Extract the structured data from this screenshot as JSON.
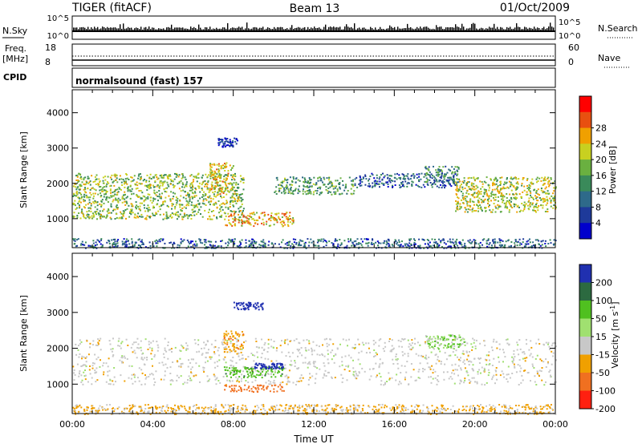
{
  "header": {
    "radar": "TIGER (fitACF)",
    "beam": "Beam 13",
    "date": "01/Oct/2009"
  },
  "panels": {
    "noise": {
      "left_label": "N.Sky",
      "left_ticks": [
        "10^5",
        "10^0"
      ],
      "right_label": "N.Search",
      "right_ticks": [
        "10^5",
        "10^0"
      ]
    },
    "freq": {
      "left_label_1": "Freq.",
      "left_label_2": "[MHz]",
      "left_ticks": [
        "18",
        "8"
      ],
      "right_label": "Nave",
      "right_ticks": [
        "60",
        "0"
      ]
    },
    "cpid": {
      "label": "CPID",
      "value": "normalsound (fast) 157"
    }
  },
  "chart_data": [
    {
      "type": "heatmap",
      "title": "",
      "parameter": "Power",
      "ylabel": "Slant Range [km]",
      "xlabel": "Time UT",
      "x_ticks": [
        "00:00",
        "04:00",
        "08:00",
        "12:00",
        "16:00",
        "20:00",
        "00:00"
      ],
      "x_range_hours": [
        0,
        24
      ],
      "y_ticks": [
        1000,
        2000,
        3000,
        4000
      ],
      "ylim": [
        180,
        4650
      ],
      "colorbar": {
        "label": "Power [dB]",
        "ticks": [
          4,
          8,
          12,
          16,
          20,
          24,
          28
        ],
        "range": [
          0,
          32
        ],
        "colors": [
          "#0000cc",
          "#1e3a9a",
          "#2e6a8a",
          "#3a8a5a",
          "#6ab040",
          "#c8d020",
          "#f0a000",
          "#e85010",
          "#ff0000"
        ]
      },
      "features": [
        {
          "time_start": 0.0,
          "time_end": 24.0,
          "range_min": 180,
          "range_max": 450,
          "description": "near-range ground clutter"
        },
        {
          "time_start": 0.0,
          "time_end": 8.5,
          "range_min": 1000,
          "range_max": 2300,
          "peak_db": 24
        },
        {
          "time_start": 7.5,
          "time_end": 11.0,
          "range_min": 800,
          "range_max": 1200,
          "peak_db": 30
        },
        {
          "time_start": 6.8,
          "time_end": 8.0,
          "range_min": 1700,
          "range_max": 2600,
          "peak_db": 28
        },
        {
          "time_start": 10.0,
          "time_end": 14.0,
          "range_min": 1700,
          "range_max": 2200,
          "peak_db": 20
        },
        {
          "time_start": 14.0,
          "time_end": 19.0,
          "range_min": 1900,
          "range_max": 2300,
          "peak_db": 14
        },
        {
          "time_start": 17.5,
          "time_end": 19.2,
          "range_min": 2050,
          "range_max": 2500,
          "peak_db": 18
        },
        {
          "time_start": 19.0,
          "time_end": 24.0,
          "range_min": 1200,
          "range_max": 2200,
          "peak_db": 26
        },
        {
          "time_start": 7.2,
          "time_end": 8.2,
          "range_min": 3050,
          "range_max": 3300,
          "peak_db": 10
        }
      ]
    },
    {
      "type": "heatmap",
      "title": "",
      "parameter": "Velocity",
      "ylabel": "Slant Range [km]",
      "xlabel": "Time UT",
      "x_ticks": [
        "00:00",
        "04:00",
        "08:00",
        "12:00",
        "16:00",
        "20:00",
        "00:00"
      ],
      "x_range_hours": [
        0,
        24
      ],
      "y_ticks": [
        1000,
        2000,
        3000,
        4000
      ],
      "ylim": [
        180,
        4650
      ],
      "colorbar": {
        "label": "Velocity [m s^-1]",
        "ticks": [
          200,
          100,
          50,
          15,
          -15,
          -50,
          -100,
          -200
        ],
        "range": [
          -250,
          250
        ],
        "colors": [
          "#2030b0",
          "#2c6a40",
          "#50c020",
          "#a0e070",
          "#c8c8c8",
          "#f0a000",
          "#f07020",
          "#ff2010"
        ]
      },
      "features": [
        {
          "time_start": 0.0,
          "time_end": 24.0,
          "range_min": 180,
          "range_max": 450,
          "velocity": -20,
          "description": "near-range ground clutter"
        },
        {
          "time_start": 0.0,
          "time_end": 24.0,
          "range_min": 1000,
          "range_max": 2300,
          "velocity": 0,
          "description": "ground scatter"
        },
        {
          "time_start": 7.5,
          "time_end": 10.5,
          "range_min": 800,
          "range_max": 1000,
          "velocity": -70
        },
        {
          "time_start": 7.5,
          "time_end": 10.5,
          "range_min": 1200,
          "range_max": 1500,
          "velocity": 60
        },
        {
          "time_start": 9.0,
          "time_end": 10.5,
          "range_min": 1450,
          "range_max": 1600,
          "velocity": 180
        },
        {
          "time_start": 7.5,
          "time_end": 8.5,
          "range_min": 1900,
          "range_max": 2500,
          "velocity": -40
        },
        {
          "time_start": 8.0,
          "time_end": 9.5,
          "range_min": 3100,
          "range_max": 3300,
          "velocity": 220
        },
        {
          "time_start": 17.5,
          "time_end": 19.5,
          "range_min": 2000,
          "range_max": 2400,
          "velocity": 30
        }
      ]
    }
  ]
}
